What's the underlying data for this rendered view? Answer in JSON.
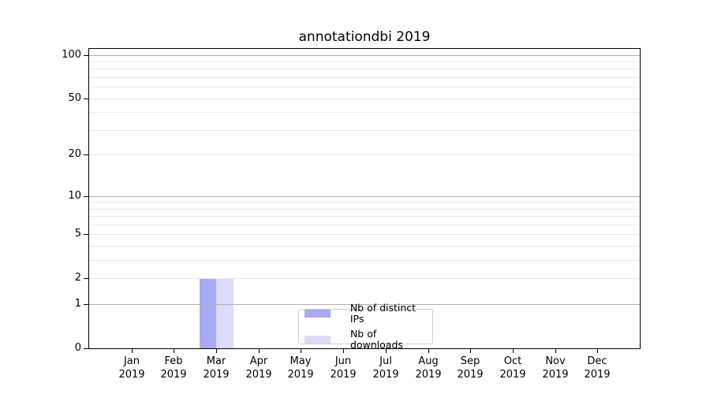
{
  "chart_data": {
    "type": "bar",
    "title": "annotationdbi 2019",
    "months": [
      "Jan",
      "Feb",
      "Mar",
      "Apr",
      "May",
      "Jun",
      "Jul",
      "Aug",
      "Sep",
      "Oct",
      "Nov",
      "Dec"
    ],
    "year": "2019",
    "categories": [
      "Jan 2019",
      "Feb 2019",
      "Mar 2019",
      "Apr 2019",
      "May 2019",
      "Jun 2019",
      "Jul 2019",
      "Aug 2019",
      "Sep 2019",
      "Oct 2019",
      "Nov 2019",
      "Dec 2019"
    ],
    "series": [
      {
        "name": "Nb of distinct IPs",
        "color": "#a8aaf5",
        "values": [
          0,
          0,
          2,
          0,
          0,
          0,
          0,
          0,
          0,
          0,
          0,
          0
        ]
      },
      {
        "name": "Nb of downloads",
        "color": "#dbdcf9",
        "values": [
          0,
          0,
          2,
          0,
          0,
          0,
          0,
          0,
          0,
          0,
          0,
          0
        ]
      }
    ],
    "xlabel": "",
    "ylabel": "",
    "y_axis": {
      "scale": "log10(1+y)",
      "ylim": [
        0,
        110
      ],
      "tick_values": [
        0,
        1,
        2,
        5,
        10,
        20,
        50,
        100
      ],
      "major_gridlines": [
        1,
        10,
        100
      ],
      "minor_gridlines": [
        2,
        3,
        4,
        5,
        6,
        7,
        8,
        9,
        20,
        30,
        40,
        50,
        60,
        70,
        80,
        90
      ]
    },
    "grid": true,
    "legend": {
      "position": "lower-center",
      "entries": [
        "Nb of distinct IPs",
        "Nb of downloads"
      ]
    },
    "colors": {
      "background": "#ffffff",
      "spine": "#000000",
      "major_grid": "#b1b1b1",
      "minor_grid": "#e8e8e8",
      "legend_border": "#cccccc",
      "text": "#000000"
    }
  }
}
